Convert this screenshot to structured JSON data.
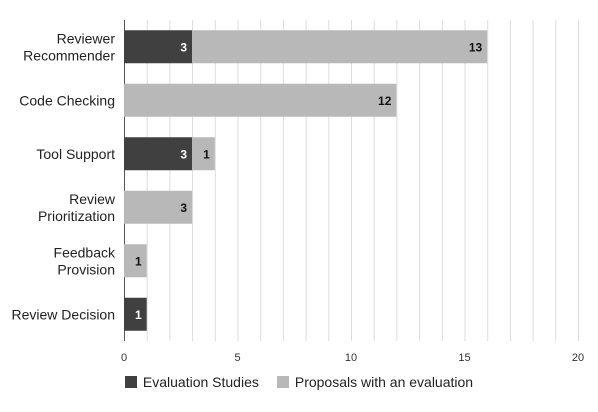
{
  "chart_data": {
    "type": "bar",
    "orientation": "horizontal",
    "stacked": true,
    "categories": [
      [
        "Reviewer",
        "Recommender"
      ],
      [
        "Code Checking"
      ],
      [
        "Tool Support"
      ],
      [
        "Review",
        "Prioritization"
      ],
      [
        "Feedback",
        "Provision"
      ],
      [
        "Review Decision"
      ]
    ],
    "series": [
      {
        "name": "Evaluation Studies",
        "color": "#404040",
        "values": [
          3,
          0,
          3,
          0,
          0,
          1
        ]
      },
      {
        "name": "Proposals with an evaluation",
        "color": "#b8b8b8",
        "values": [
          13,
          12,
          1,
          3,
          1,
          0
        ]
      }
    ],
    "xlim": [
      0,
      20
    ],
    "xticks": [
      0,
      5,
      10,
      15,
      20
    ],
    "grid": true,
    "legend_position": "bottom",
    "title": "",
    "xlabel": "",
    "ylabel": ""
  }
}
